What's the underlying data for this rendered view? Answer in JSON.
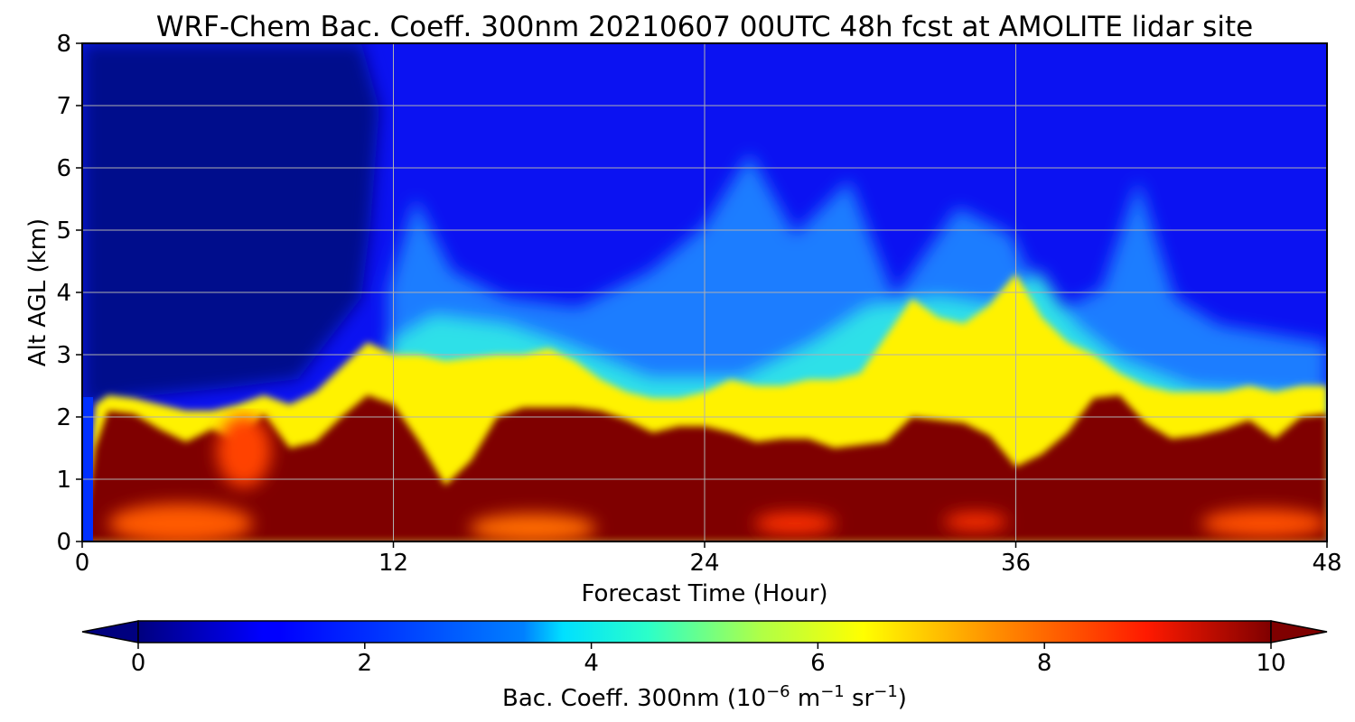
{
  "chart_data": {
    "type": "heatmap",
    "title": "WRF-Chem Bac. Coeff. 300nm  20210607 00UTC 48h fcst at AMOLITE lidar site",
    "xlabel": "Forecast Time (Hour)",
    "ylabel": "Alt AGL (km)",
    "xlim": [
      0,
      48
    ],
    "ylim": [
      0,
      8
    ],
    "x_ticks": [
      "0",
      "12",
      "24",
      "36",
      "48"
    ],
    "y_ticks": [
      "0",
      "1",
      "2",
      "3",
      "4",
      "5",
      "6",
      "7",
      "8"
    ],
    "grid": true,
    "colormap": "jet",
    "colorbar": {
      "label_main": "Bac. Coeff. 300nm  (10",
      "label_exp1": "−6",
      "label_mid": " m",
      "label_exp2": "−1",
      "label_mid2": " sr",
      "label_exp3": "−1",
      "label_end": ")",
      "range": [
        0,
        10
      ],
      "extend": "both",
      "ticks": [
        "0",
        "2",
        "4",
        "6",
        "8",
        "10"
      ]
    },
    "hours": [
      0,
      0.5,
      1,
      2,
      3,
      4,
      5,
      6,
      7,
      8,
      9,
      10,
      11,
      12,
      13,
      14,
      15,
      16,
      17,
      18,
      19,
      20,
      21,
      22,
      23,
      24,
      25,
      26,
      27,
      28,
      29,
      30,
      31,
      32,
      33,
      34,
      35,
      36,
      37,
      38,
      39,
      40,
      41,
      42,
      43,
      44,
      45,
      46,
      47,
      48
    ],
    "boundary_layer_top_km": [
      0.0,
      1.5,
      2.1,
      2.05,
      1.8,
      1.6,
      1.8,
      1.6,
      2.05,
      1.5,
      1.6,
      2.0,
      2.35,
      2.2,
      1.6,
      0.9,
      1.3,
      2.0,
      2.15,
      2.15,
      2.15,
      2.1,
      1.95,
      1.75,
      1.85,
      1.85,
      1.75,
      1.6,
      1.65,
      1.65,
      1.5,
      1.55,
      1.6,
      2.0,
      1.95,
      1.9,
      1.7,
      1.2,
      1.4,
      1.75,
      2.3,
      2.35,
      1.9,
      1.65,
      1.7,
      1.8,
      1.95,
      1.65,
      2.0,
      2.05
    ],
    "lofted_layer_top_km": [
      0.0,
      2.2,
      2.35,
      2.3,
      2.2,
      2.1,
      2.1,
      2.2,
      2.35,
      2.2,
      2.4,
      2.8,
      3.2,
      3.0,
      3.0,
      2.9,
      2.95,
      3.0,
      3.0,
      3.1,
      2.9,
      2.6,
      2.4,
      2.3,
      2.3,
      2.4,
      2.6,
      2.5,
      2.5,
      2.6,
      2.6,
      2.7,
      3.3,
      3.9,
      3.6,
      3.5,
      3.8,
      4.3,
      3.6,
      3.2,
      3.0,
      2.7,
      2.5,
      2.4,
      2.4,
      2.4,
      2.5,
      2.4,
      2.5,
      2.5
    ]
  }
}
